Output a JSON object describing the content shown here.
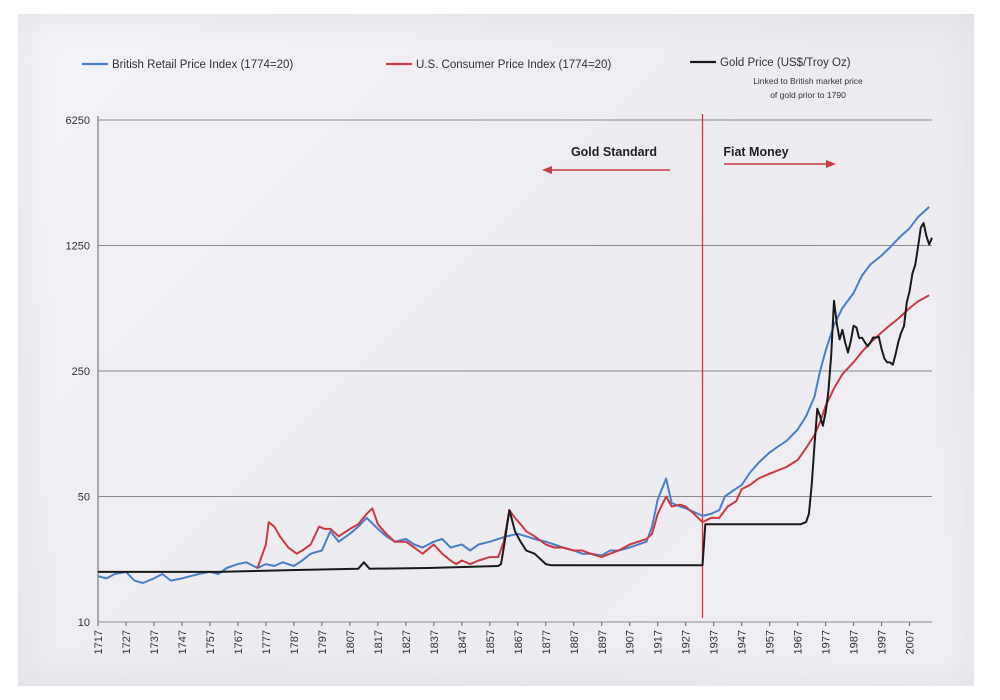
{
  "chart_data": {
    "type": "line",
    "title": "",
    "xlabel": "",
    "ylabel": "",
    "yscale": "log",
    "ylim": [
      10,
      6250
    ],
    "xlim": [
      1717,
      2015
    ],
    "y_ticks": [
      "6250",
      "1250",
      "250",
      "50",
      "10"
    ],
    "y_tick_values": [
      6250,
      1250,
      250,
      50,
      10
    ],
    "x_ticks": [
      "1717",
      "1727",
      "1737",
      "1747",
      "1757",
      "1767",
      "1777",
      "1787",
      "1797",
      "1807",
      "1817",
      "1827",
      "1837",
      "1847",
      "1857",
      "1867",
      "1877",
      "1887",
      "1897",
      "1907",
      "1917",
      "1927",
      "1937",
      "1947",
      "1957",
      "1967",
      "1977",
      "1987",
      "1997",
      "2007"
    ],
    "legend": {
      "british": "British Retail Price Index (1774=20)",
      "us": "U.S. Consumer Price Index (1774=20)",
      "gold": "Gold Price (US$/Troy Oz)",
      "gold_note_1": "Linked to British market price",
      "gold_note_2": "of gold prior to 1790"
    },
    "annotations": {
      "gold_standard": "Gold Standard",
      "fiat_money": "Fiat Money",
      "divider_year": 1933
    },
    "series": [
      {
        "name": "British Retail Price Index (1774=20)",
        "color": "#4a7fc4",
        "points": [
          [
            1717,
            18
          ],
          [
            1720,
            17.5
          ],
          [
            1723,
            18.5
          ],
          [
            1727,
            19
          ],
          [
            1730,
            17
          ],
          [
            1733,
            16.5
          ],
          [
            1737,
            17.5
          ],
          [
            1740,
            18.5
          ],
          [
            1743,
            17
          ],
          [
            1747,
            17.5
          ],
          [
            1750,
            18
          ],
          [
            1753,
            18.5
          ],
          [
            1757,
            19
          ],
          [
            1760,
            18.5
          ],
          [
            1763,
            20
          ],
          [
            1767,
            21
          ],
          [
            1770,
            21.5
          ],
          [
            1774,
            20
          ],
          [
            1777,
            21
          ],
          [
            1780,
            20.5
          ],
          [
            1783,
            21.5
          ],
          [
            1787,
            20.5
          ],
          [
            1790,
            22
          ],
          [
            1793,
            24
          ],
          [
            1797,
            25
          ],
          [
            1800,
            32
          ],
          [
            1803,
            28
          ],
          [
            1807,
            31
          ],
          [
            1810,
            34
          ],
          [
            1813,
            38
          ],
          [
            1817,
            33
          ],
          [
            1820,
            30
          ],
          [
            1823,
            28
          ],
          [
            1827,
            29
          ],
          [
            1830,
            27
          ],
          [
            1833,
            26
          ],
          [
            1837,
            28
          ],
          [
            1840,
            29
          ],
          [
            1843,
            26
          ],
          [
            1847,
            27
          ],
          [
            1850,
            25
          ],
          [
            1853,
            27
          ],
          [
            1857,
            28
          ],
          [
            1860,
            29
          ],
          [
            1863,
            30
          ],
          [
            1867,
            31
          ],
          [
            1870,
            30
          ],
          [
            1873,
            29
          ],
          [
            1877,
            28
          ],
          [
            1880,
            27
          ],
          [
            1883,
            26
          ],
          [
            1887,
            25
          ],
          [
            1890,
            24
          ],
          [
            1893,
            24
          ],
          [
            1897,
            23.5
          ],
          [
            1900,
            25
          ],
          [
            1903,
            25
          ],
          [
            1907,
            26
          ],
          [
            1910,
            27
          ],
          [
            1913,
            28
          ],
          [
            1915,
            34
          ],
          [
            1917,
            48
          ],
          [
            1920,
            63
          ],
          [
            1922,
            46
          ],
          [
            1925,
            44
          ],
          [
            1927,
            43
          ],
          [
            1930,
            41
          ],
          [
            1933,
            39
          ],
          [
            1936,
            40
          ],
          [
            1939,
            42
          ],
          [
            1941,
            50
          ],
          [
            1944,
            54
          ],
          [
            1947,
            58
          ],
          [
            1950,
            68
          ],
          [
            1953,
            77
          ],
          [
            1957,
            88
          ],
          [
            1960,
            95
          ],
          [
            1963,
            102
          ],
          [
            1967,
            118
          ],
          [
            1970,
            140
          ],
          [
            1973,
            180
          ],
          [
            1975,
            250
          ],
          [
            1977,
            325
          ],
          [
            1980,
            450
          ],
          [
            1983,
            560
          ],
          [
            1987,
            680
          ],
          [
            1990,
            850
          ],
          [
            1993,
            980
          ],
          [
            1997,
            1100
          ],
          [
            2000,
            1220
          ],
          [
            2003,
            1370
          ],
          [
            2007,
            1560
          ],
          [
            2010,
            1800
          ],
          [
            2014,
            2050
          ]
        ]
      },
      {
        "name": "U.S. Consumer Price Index (1774=20)",
        "color": "#c83a44",
        "points": [
          [
            1774,
            20
          ],
          [
            1777,
            27
          ],
          [
            1778,
            36
          ],
          [
            1780,
            34
          ],
          [
            1782,
            30
          ],
          [
            1785,
            26
          ],
          [
            1788,
            24
          ],
          [
            1790,
            25
          ],
          [
            1793,
            27
          ],
          [
            1796,
            34
          ],
          [
            1798,
            33
          ],
          [
            1800,
            33
          ],
          [
            1803,
            30
          ],
          [
            1807,
            33
          ],
          [
            1810,
            35
          ],
          [
            1813,
            40
          ],
          [
            1815,
            43
          ],
          [
            1817,
            35
          ],
          [
            1820,
            31
          ],
          [
            1823,
            28
          ],
          [
            1827,
            28
          ],
          [
            1830,
            26
          ],
          [
            1833,
            24
          ],
          [
            1837,
            27
          ],
          [
            1840,
            24
          ],
          [
            1843,
            22
          ],
          [
            1845,
            21
          ],
          [
            1847,
            22
          ],
          [
            1850,
            21
          ],
          [
            1853,
            22
          ],
          [
            1857,
            23
          ],
          [
            1860,
            23
          ],
          [
            1862,
            28
          ],
          [
            1864,
            42
          ],
          [
            1866,
            38
          ],
          [
            1868,
            35
          ],
          [
            1870,
            32
          ],
          [
            1873,
            30
          ],
          [
            1877,
            27
          ],
          [
            1880,
            26
          ],
          [
            1883,
            26
          ],
          [
            1887,
            25
          ],
          [
            1890,
            25
          ],
          [
            1893,
            24
          ],
          [
            1897,
            23
          ],
          [
            1900,
            24
          ],
          [
            1903,
            25
          ],
          [
            1907,
            27
          ],
          [
            1910,
            28
          ],
          [
            1913,
            29
          ],
          [
            1915,
            31
          ],
          [
            1917,
            40
          ],
          [
            1920,
            50
          ],
          [
            1922,
            44
          ],
          [
            1925,
            45
          ],
          [
            1927,
            44
          ],
          [
            1930,
            40
          ],
          [
            1933,
            36
          ],
          [
            1936,
            38
          ],
          [
            1939,
            38
          ],
          [
            1942,
            44
          ],
          [
            1945,
            47
          ],
          [
            1947,
            55
          ],
          [
            1950,
            58
          ],
          [
            1953,
            63
          ],
          [
            1957,
            67
          ],
          [
            1960,
            70
          ],
          [
            1963,
            73
          ],
          [
            1967,
            80
          ],
          [
            1970,
            93
          ],
          [
            1973,
            110
          ],
          [
            1975,
            130
          ],
          [
            1977,
            160
          ],
          [
            1980,
            200
          ],
          [
            1983,
            240
          ],
          [
            1987,
            280
          ],
          [
            1990,
            320
          ],
          [
            1993,
            360
          ],
          [
            1997,
            410
          ],
          [
            2000,
            450
          ],
          [
            2003,
            490
          ],
          [
            2007,
            560
          ],
          [
            2010,
            610
          ],
          [
            2014,
            660
          ]
        ]
      },
      {
        "name": "Gold Price (US$/Troy Oz)",
        "color": "#1a1a1a",
        "points": [
          [
            1717,
            19
          ],
          [
            1760,
            19
          ],
          [
            1790,
            19.5
          ],
          [
            1810,
            19.8
          ],
          [
            1812,
            21.5
          ],
          [
            1814,
            19.8
          ],
          [
            1835,
            20
          ],
          [
            1860,
            20.5
          ],
          [
            1861,
            21
          ],
          [
            1862,
            26
          ],
          [
            1864,
            42
          ],
          [
            1866,
            32
          ],
          [
            1868,
            28
          ],
          [
            1870,
            25
          ],
          [
            1873,
            24
          ],
          [
            1877,
            21
          ],
          [
            1879,
            20.7
          ],
          [
            1900,
            20.7
          ],
          [
            1933,
            20.7
          ],
          [
            1934,
            35
          ],
          [
            1940,
            35
          ],
          [
            1968,
            35
          ],
          [
            1970,
            36
          ],
          [
            1971,
            40
          ],
          [
            1972,
            58
          ],
          [
            1973,
            97
          ],
          [
            1974,
            154
          ],
          [
            1975,
            140
          ],
          [
            1976,
            124
          ],
          [
            1977,
            148
          ],
          [
            1978,
            193
          ],
          [
            1979,
            306
          ],
          [
            1980,
            615
          ],
          [
            1981,
            460
          ],
          [
            1982,
            375
          ],
          [
            1983,
            424
          ],
          [
            1984,
            360
          ],
          [
            1985,
            317
          ],
          [
            1986,
            368
          ],
          [
            1987,
            447
          ],
          [
            1988,
            437
          ],
          [
            1989,
            381
          ],
          [
            1990,
            383
          ],
          [
            1991,
            362
          ],
          [
            1992,
            343
          ],
          [
            1993,
            360
          ],
          [
            1994,
            384
          ],
          [
            1995,
            384
          ],
          [
            1996,
            387
          ],
          [
            1997,
            331
          ],
          [
            1998,
            294
          ],
          [
            1999,
            279
          ],
          [
            2000,
            279
          ],
          [
            2001,
            271
          ],
          [
            2002,
            310
          ],
          [
            2003,
            364
          ],
          [
            2004,
            409
          ],
          [
            2005,
            445
          ],
          [
            2006,
            604
          ],
          [
            2007,
            696
          ],
          [
            2008,
            872
          ],
          [
            2009,
            972
          ],
          [
            2010,
            1225
          ],
          [
            2011,
            1572
          ],
          [
            2012,
            1669
          ],
          [
            2013,
            1411
          ],
          [
            2014,
            1266
          ],
          [
            2015,
            1380
          ]
        ]
      }
    ]
  }
}
